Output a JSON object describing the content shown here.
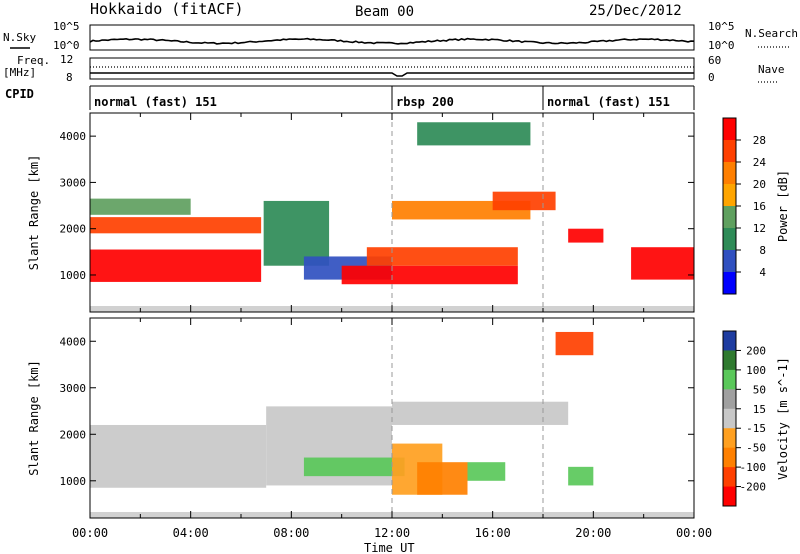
{
  "header": {
    "station": "Hokkaido (fitACF)",
    "beam": "Beam 00",
    "date": "25/Dec/2012"
  },
  "top_panels": {
    "nsky_label": "N.Sky",
    "nsearch_label": "N.Search",
    "nsky_ticks": [
      "10^5",
      "10^0"
    ],
    "freq_label": "Freq.",
    "freq_unit": "[MHz]",
    "freq_ticks": [
      "12",
      "8"
    ],
    "nave_label": "Nave",
    "nave_ticks": [
      "60",
      "0"
    ],
    "cpid_label": "CPID",
    "cpid_segments": [
      {
        "label": "normal (fast) 151",
        "start_h": 0,
        "end_h": 12
      },
      {
        "label": "rbsp 200",
        "start_h": 12,
        "end_h": 18
      },
      {
        "label": "normal (fast) 151",
        "start_h": 18,
        "end_h": 24
      }
    ]
  },
  "colors": {
    "power_scale": [
      "#0000ff",
      "#3050c0",
      "#2e8b57",
      "#5fa05f",
      "#ffa500",
      "#ff7f00",
      "#ff4000",
      "#ff0000"
    ],
    "velocity_scale": [
      "#1e3ca0",
      "#2f7a2f",
      "#5ac85a",
      "#a0a0a0",
      "#c8c8c8",
      "#ffa020",
      "#ff8000",
      "#ff4000",
      "#ff0000"
    ],
    "gate_cut": "#b3b3b3"
  },
  "chart_data": [
    {
      "type": "heatmap",
      "name": "power",
      "ylabel": "Slant Range [km]",
      "xlabel": "Time UT",
      "xlim_hours": [
        0,
        24
      ],
      "ylim": [
        200,
        4500
      ],
      "x_ticks": [
        "00:00",
        "04:00",
        "08:00",
        "12:00",
        "16:00",
        "20:00",
        "00:00"
      ],
      "y_ticks": [
        1000,
        2000,
        3000,
        4000
      ],
      "colorbar_label": "Power [dB]",
      "colorbar_ticks": [
        4,
        8,
        12,
        16,
        20,
        24,
        28
      ],
      "regions": [
        {
          "t0": 0.0,
          "t1": 6.8,
          "r0": 850,
          "r1": 1550,
          "level": 7
        },
        {
          "t0": 0.0,
          "t1": 6.8,
          "r0": 1900,
          "r1": 2250,
          "level": 6
        },
        {
          "t0": 0.0,
          "t1": 4.0,
          "r0": 2300,
          "r1": 2650,
          "level": 3
        },
        {
          "t0": 6.9,
          "t1": 9.5,
          "r0": 1200,
          "r1": 2600,
          "level": 2
        },
        {
          "t0": 8.5,
          "t1": 12.0,
          "r0": 900,
          "r1": 1400,
          "level": 1
        },
        {
          "t0": 10.0,
          "t1": 17.0,
          "r0": 800,
          "r1": 1200,
          "level": 7
        },
        {
          "t0": 11.0,
          "t1": 17.0,
          "r0": 1200,
          "r1": 1600,
          "level": 6
        },
        {
          "t0": 12.0,
          "t1": 17.5,
          "r0": 2200,
          "r1": 2600,
          "level": 5
        },
        {
          "t0": 13.0,
          "t1": 17.5,
          "r0": 3800,
          "r1": 4300,
          "level": 2
        },
        {
          "t0": 16.0,
          "t1": 18.5,
          "r0": 2400,
          "r1": 2800,
          "level": 6
        },
        {
          "t0": 19.0,
          "t1": 20.4,
          "r0": 1700,
          "r1": 2000,
          "level": 7
        },
        {
          "t0": 21.5,
          "t1": 24.0,
          "r0": 900,
          "r1": 1600,
          "level": 7
        }
      ]
    },
    {
      "type": "heatmap",
      "name": "velocity",
      "ylabel": "Slant Range [km]",
      "xlabel": "Time UT",
      "xlim_hours": [
        0,
        24
      ],
      "ylim": [
        200,
        4500
      ],
      "x_ticks": [
        "00:00",
        "04:00",
        "08:00",
        "12:00",
        "16:00",
        "20:00",
        "00:00"
      ],
      "y_ticks": [
        1000,
        2000,
        3000,
        4000
      ],
      "colorbar_label": "Velocity [m s^-1]",
      "colorbar_ticks": [
        200,
        100,
        50,
        15,
        -15,
        -50,
        -100,
        -200
      ],
      "regions": [
        {
          "t0": 0.0,
          "t1": 7.0,
          "r0": 850,
          "r1": 2200,
          "level": 4
        },
        {
          "t0": 7.0,
          "t1": 12.0,
          "r0": 900,
          "r1": 2600,
          "level": 4
        },
        {
          "t0": 12.0,
          "t1": 19.0,
          "r0": 2200,
          "r1": 2700,
          "level": 4
        },
        {
          "t0": 8.5,
          "t1": 12.5,
          "r0": 1100,
          "r1": 1500,
          "level": 2
        },
        {
          "t0": 12.0,
          "t1": 14.0,
          "r0": 700,
          "r1": 1800,
          "level": 5
        },
        {
          "t0": 13.0,
          "t1": 15.0,
          "r0": 700,
          "r1": 1400,
          "level": 6
        },
        {
          "t0": 15.0,
          "t1": 16.5,
          "r0": 1000,
          "r1": 1400,
          "level": 2
        },
        {
          "t0": 18.5,
          "t1": 20.0,
          "r0": 3700,
          "r1": 4200,
          "level": 7
        },
        {
          "t0": 19.0,
          "t1": 20.0,
          "r0": 900,
          "r1": 1300,
          "level": 2
        }
      ]
    }
  ]
}
